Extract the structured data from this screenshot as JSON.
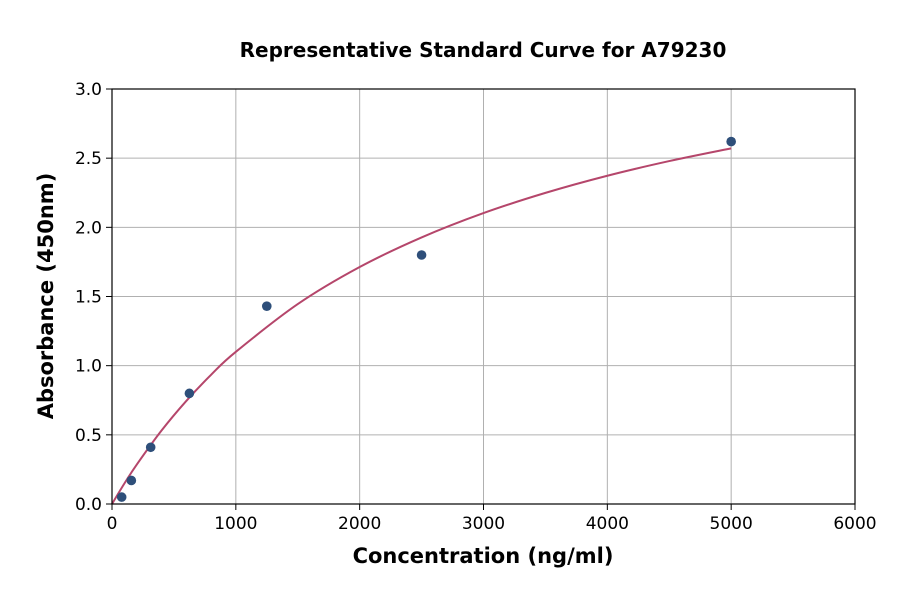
{
  "chart_data": {
    "type": "scatter",
    "title": "Representative Standard Curve for A79230",
    "xlabel": "Concentration (ng/ml)",
    "ylabel": "Absorbance (450nm)",
    "xlim": [
      0,
      6000
    ],
    "ylim": [
      0,
      3.0
    ],
    "xticks": [
      "0",
      "1000",
      "2000",
      "3000",
      "4000",
      "5000",
      "6000"
    ],
    "yticks": [
      "0.0",
      "0.5",
      "1.0",
      "1.5",
      "2.0",
      "2.5",
      "3.0"
    ],
    "grid": true,
    "points": {
      "x": [
        78.125,
        156.25,
        312.5,
        625,
        1250,
        2500,
        5000
      ],
      "y": [
        0.05,
        0.17,
        0.41,
        0.8,
        1.43,
        1.8,
        2.62
      ],
      "color": "#2e4f7a"
    },
    "fit_curve": {
      "x": [
        0,
        100,
        200,
        400,
        600,
        800,
        1000,
        1500,
        2000,
        2500,
        3000,
        3500,
        4000,
        4500,
        5000
      ],
      "y": [
        0,
        0.148,
        0.285,
        0.531,
        0.745,
        0.934,
        1.1,
        1.445,
        1.713,
        1.927,
        2.103,
        2.249,
        2.373,
        2.479,
        2.571
      ],
      "color": "#b5466b"
    }
  }
}
